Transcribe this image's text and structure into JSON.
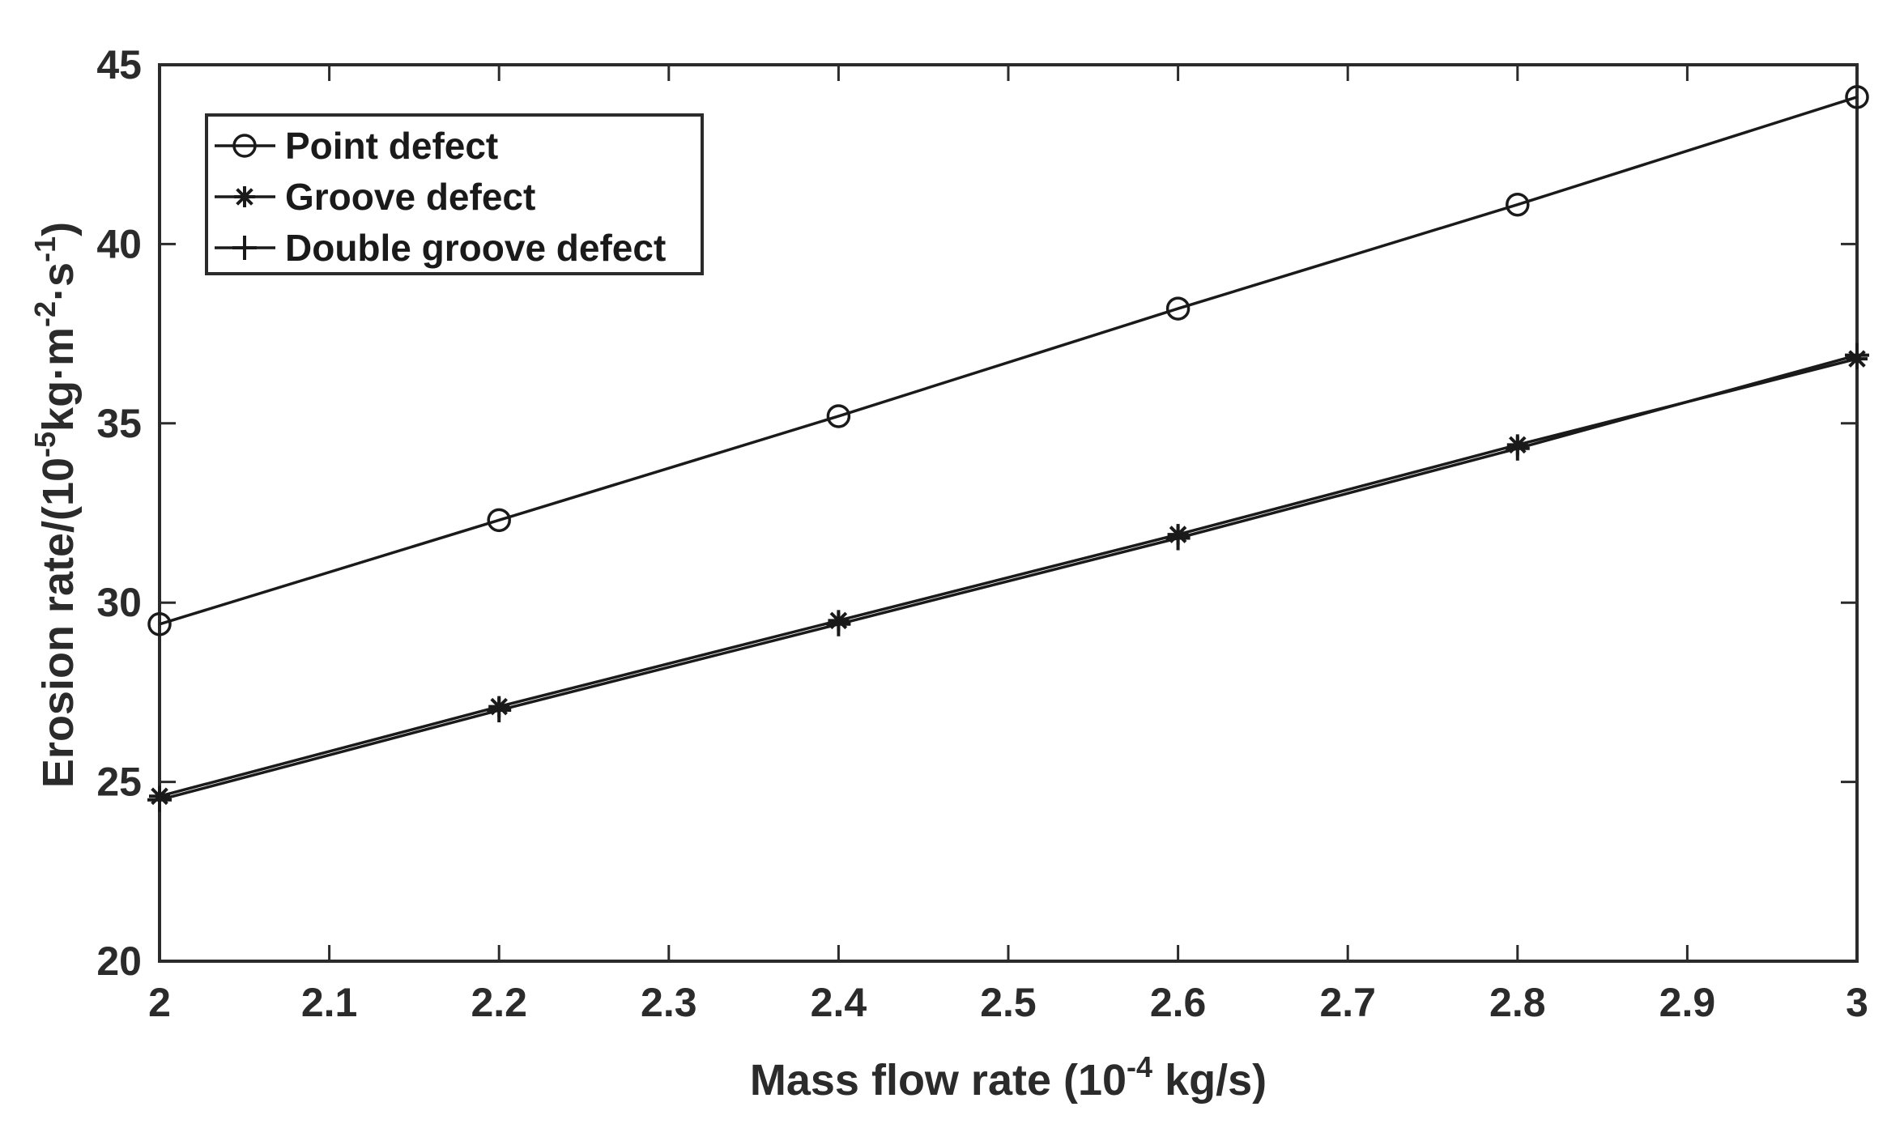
{
  "chart_data": {
    "type": "line",
    "title": "",
    "xlabel": "Mass flow rate (10",
    "xlabel_sup": "-4",
    "xlabel_end": " kg/s)",
    "ylabel": "Erosion rate/(10",
    "ylabel_sup1": "-5",
    "ylabel_mid": "kg·m",
    "ylabel_sup2": "-2",
    "ylabel_mid2": "·s",
    "ylabel_sup3": "-1",
    "ylabel_end": ")",
    "xlim": [
      2,
      3
    ],
    "ylim": [
      20,
      45
    ],
    "xticks": [
      2,
      2.1,
      2.2,
      2.3,
      2.4,
      2.5,
      2.6,
      2.7,
      2.8,
      2.9,
      3
    ],
    "xtick_labels": [
      "2",
      "2.1",
      "2.2",
      "2.3",
      "2.4",
      "2.5",
      "2.6",
      "2.7",
      "2.8",
      "2.9",
      "3"
    ],
    "yticks": [
      20,
      25,
      30,
      35,
      40,
      45
    ],
    "ytick_labels": [
      "20",
      "25",
      "30",
      "35",
      "40",
      "45"
    ],
    "grid": false,
    "legend_position": "top-left",
    "x": [
      2,
      2.2,
      2.4,
      2.6,
      2.8,
      3
    ],
    "series": [
      {
        "name": "Point defect",
        "marker": "circle",
        "values": [
          29.4,
          32.3,
          35.2,
          38.2,
          41.1,
          44.1
        ]
      },
      {
        "name": "Groove defect",
        "marker": "asterisk",
        "values": [
          24.6,
          27.1,
          29.5,
          31.9,
          34.4,
          36.8
        ]
      },
      {
        "name": "Double groove defect",
        "marker": "plus",
        "values": [
          24.5,
          27.0,
          29.4,
          31.8,
          34.3,
          36.9
        ]
      }
    ],
    "colors": {
      "line": "#1a1a1a",
      "axis": "#2b2b2b"
    }
  }
}
